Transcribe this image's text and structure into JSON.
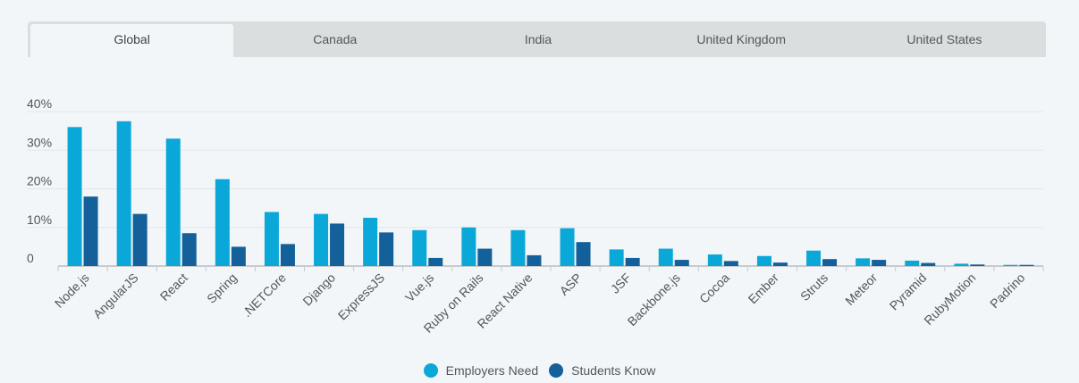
{
  "tabs": [
    {
      "label": "Global",
      "active": true
    },
    {
      "label": "Canada",
      "active": false
    },
    {
      "label": "India",
      "active": false
    },
    {
      "label": "United Kingdom",
      "active": false
    },
    {
      "label": "United States",
      "active": false
    }
  ],
  "colors": {
    "employers": "#0aa8d9",
    "students": "#14609a",
    "grid": "#e2e7ea",
    "axis": "#c5cbce",
    "tick_text": "#50575c"
  },
  "chart_data": {
    "type": "bar",
    "title": "",
    "xlabel": "",
    "ylabel": "",
    "ylim": [
      0,
      40
    ],
    "yticks": [
      {
        "value": 0,
        "label": "0"
      },
      {
        "value": 10,
        "label": "10%"
      },
      {
        "value": 20,
        "label": "20%"
      },
      {
        "value": 30,
        "label": "30%"
      },
      {
        "value": 40,
        "label": "40%"
      }
    ],
    "categories": [
      "Node.js",
      "AngularJS",
      "React",
      "Spring",
      ".NETCore",
      "Django",
      "ExpressJS",
      "Vue.js",
      "Ruby on Rails",
      "React Native",
      "ASP",
      "JSF",
      "Backbone.js",
      "Cocoa",
      "Ember",
      "Struts",
      "Meteor",
      "Pyramid",
      "RubyMotion",
      "Padrino"
    ],
    "series": [
      {
        "name": "Employers Need",
        "values": [
          36,
          37.5,
          33,
          22.5,
          14,
          13.5,
          12.5,
          9.3,
          10,
          9.3,
          9.8,
          4.3,
          4.5,
          3,
          2.6,
          4,
          2,
          1.4,
          0.6,
          0.3
        ]
      },
      {
        "name": "Students Know",
        "values": [
          18,
          13.5,
          8.5,
          5,
          5.7,
          11,
          8.7,
          2.1,
          4.5,
          2.8,
          6.2,
          2.1,
          1.6,
          1.3,
          0.9,
          1.8,
          1.6,
          0.8,
          0.4,
          0.3
        ]
      }
    ],
    "legend_position": "bottom-center",
    "grid": true
  }
}
